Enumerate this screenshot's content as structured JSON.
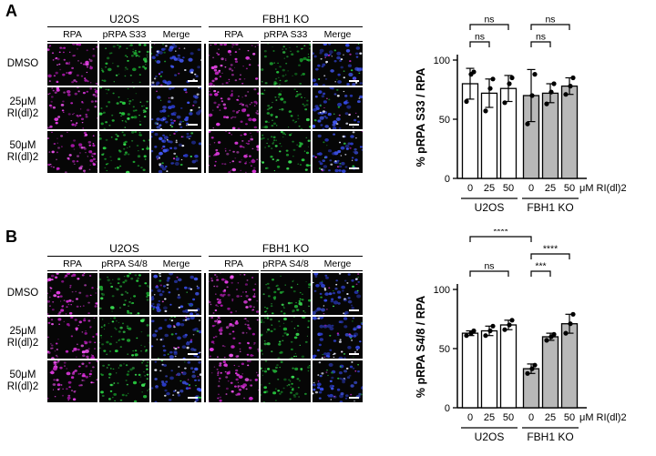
{
  "figure": {
    "panels": [
      {
        "label": "A",
        "groups": [
          "U2OS",
          "FBH1 KO"
        ],
        "columns": [
          "RPA",
          "pRPA S33",
          "Merge"
        ],
        "rows": [
          [
            "DMSO"
          ],
          [
            "25μM",
            "RI(dl)2"
          ],
          [
            "50μM",
            "RI(dl)2"
          ]
        ]
      },
      {
        "label": "B",
        "groups": [
          "U2OS",
          "FBH1 KO"
        ],
        "columns": [
          "RPA",
          "pRPA S4/8",
          "Merge"
        ],
        "rows": [
          [
            "DMSO"
          ],
          [
            "25μM",
            "RI(dl)2"
          ],
          [
            "50μM",
            "RI(dl)2"
          ]
        ]
      }
    ]
  },
  "colors": {
    "magenta": [
      "#e23be2",
      "#c926c9",
      "#f055f0",
      "#a816a8"
    ],
    "green": [
      "#27c93f",
      "#1ea832",
      "#3de455",
      "#149026"
    ],
    "blue": [
      "#3448e0",
      "#2a3bc8",
      "#4257f0",
      "#26329f"
    ],
    "white_speck": "#eef0ff",
    "bar_white": "#ffffff",
    "bar_gray": "#b8b8b8"
  },
  "chart_data": [
    {
      "type": "bar",
      "ylabel": "% pRPA S33 / RPA",
      "ylim": [
        0,
        100
      ],
      "yticks": [
        0,
        50,
        100
      ],
      "categories": [
        "0",
        "25",
        "50",
        "0",
        "25",
        "50"
      ],
      "x_unit_label": "μM RI(dl)2",
      "group_labels": [
        "U2OS",
        "FBH1 KO"
      ],
      "series": [
        {
          "name": "U2OS",
          "fill": "#ffffff",
          "values": [
            80,
            72,
            76
          ],
          "errors": [
            13,
            12,
            11
          ],
          "points": [
            [
              65,
              88,
              90
            ],
            [
              57,
              76,
              84
            ],
            [
              64,
              80,
              85
            ]
          ]
        },
        {
          "name": "FBH1 KO",
          "fill": "#b8b8b8",
          "values": [
            70,
            72,
            78
          ],
          "errors": [
            22,
            8,
            7
          ],
          "points": [
            [
              46,
              70,
              88
            ],
            [
              63,
              73,
              80
            ],
            [
              71,
              78,
              85
            ]
          ]
        }
      ],
      "significance": [
        {
          "from": 0,
          "to": 1,
          "label": "ns",
          "level": 1
        },
        {
          "from": 0,
          "to": 2,
          "label": "ns",
          "level": 2
        },
        {
          "from": 3,
          "to": 4,
          "label": "ns",
          "level": 1
        },
        {
          "from": 3,
          "to": 5,
          "label": "ns",
          "level": 2
        }
      ]
    },
    {
      "type": "bar",
      "ylabel": "% pRPA S4/8 / RPA",
      "ylim": [
        0,
        100
      ],
      "yticks": [
        0,
        50,
        100
      ],
      "categories": [
        "0",
        "25",
        "50",
        "0",
        "25",
        "50"
      ],
      "x_unit_label": "μM RI(dl)2",
      "group_labels": [
        "U2OS",
        "FBH1 KO"
      ],
      "series": [
        {
          "name": "U2OS",
          "fill": "#ffffff",
          "values": [
            63,
            65,
            70
          ],
          "errors": [
            2,
            4,
            4
          ],
          "points": [
            [
              61,
              63,
              65
            ],
            [
              61,
              65,
              69
            ],
            [
              66,
              70,
              74
            ]
          ]
        },
        {
          "name": "FBH1 KO",
          "fill": "#b8b8b8",
          "values": [
            33,
            60,
            71
          ],
          "errors": [
            4,
            3,
            8
          ],
          "points": [
            [
              29,
              33,
              36
            ],
            [
              57,
              60,
              62
            ],
            [
              63,
              71,
              79
            ]
          ]
        }
      ],
      "significance": [
        {
          "from": 0,
          "to": 2,
          "label": "ns",
          "level": 1
        },
        {
          "from": 0,
          "to": 3,
          "label": "****",
          "level": 3
        },
        {
          "from": 3,
          "to": 4,
          "label": "***",
          "level": 1
        },
        {
          "from": 3,
          "to": 5,
          "label": "****",
          "level": 2
        }
      ]
    }
  ]
}
